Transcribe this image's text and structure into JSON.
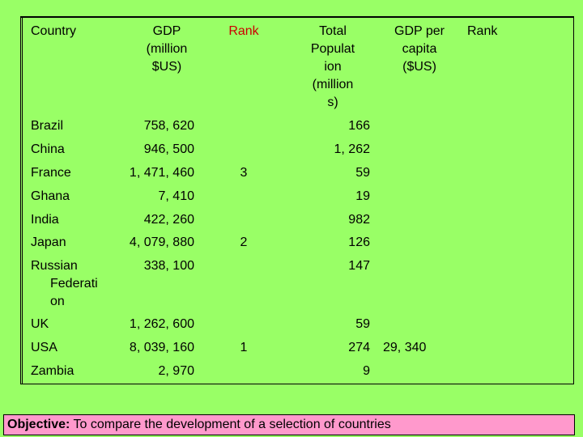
{
  "headers": {
    "country": "Country",
    "gdp": [
      "GDP",
      "(million",
      "$US)"
    ],
    "rank1": "Rank",
    "population": [
      "Total",
      "Populat",
      "ion",
      "(million",
      "s)"
    ],
    "gdp_per_capita": [
      "GDP per",
      "capita",
      "($US)"
    ],
    "rank2": "Rank"
  },
  "rows": [
    {
      "country": [
        "Brazil"
      ],
      "gdp": "758, 620",
      "rank": "",
      "population": "166",
      "per_capita": ""
    },
    {
      "country": [
        "China"
      ],
      "gdp": "946, 500",
      "rank": "",
      "population": "1, 262",
      "per_capita": ""
    },
    {
      "country": [
        "France"
      ],
      "gdp": "1, 471, 460",
      "rank": "3",
      "population": "59",
      "per_capita": ""
    },
    {
      "country": [
        "Ghana"
      ],
      "gdp": "7, 410",
      "rank": "",
      "population": "19",
      "per_capita": ""
    },
    {
      "country": [
        "India"
      ],
      "gdp": "422, 260",
      "rank": "",
      "population": "982",
      "per_capita": ""
    },
    {
      "country": [
        "Japan"
      ],
      "gdp": "4, 079, 880",
      "rank": "2",
      "population": "126",
      "per_capita": ""
    },
    {
      "country": [
        "Russian",
        "Federati",
        "on"
      ],
      "gdp": "338, 100",
      "rank": "",
      "population": "147",
      "per_capita": ""
    },
    {
      "country": [
        "UK"
      ],
      "gdp": "1, 262, 600",
      "rank": "",
      "population": "59",
      "per_capita": ""
    },
    {
      "country": [
        "USA"
      ],
      "gdp": "8, 039, 160",
      "rank": "1",
      "population": "274",
      "per_capita": "29, 340"
    },
    {
      "country": [
        "Zambia"
      ],
      "gdp": "2, 970",
      "rank": "",
      "population": "9",
      "per_capita": ""
    }
  ],
  "objective": {
    "label": "Objective:",
    "text": "To compare the development of a selection of countries"
  },
  "colors": {
    "background": "#99ff66",
    "rank_header": "#cc0000",
    "objective_box": "#ff99cc"
  }
}
